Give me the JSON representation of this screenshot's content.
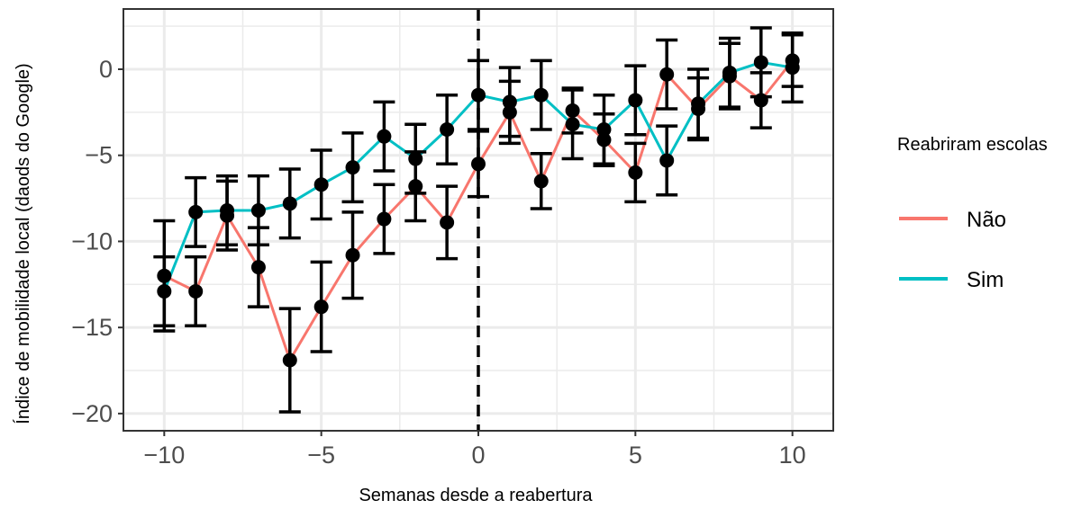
{
  "chart_data": {
    "type": "line",
    "title": "",
    "xlabel": "Semanas desde a reabertura",
    "ylabel": "Índice de mobilidade local (daods do Google)",
    "xlim": [
      -11.3,
      11.3
    ],
    "ylim": [
      -21,
      3.5
    ],
    "x_ticks": [
      -10,
      -5,
      0,
      5,
      10
    ],
    "x_tick_labels": [
      "−10",
      "−5",
      "0",
      "5",
      "10"
    ],
    "y_ticks": [
      -20,
      -15,
      -10,
      -5,
      0
    ],
    "y_tick_labels": [
      "−20",
      "−15",
      "−10",
      "−5",
      "0"
    ],
    "grid": true,
    "vline_x": 0,
    "legend": {
      "title": "Reabriram escolas",
      "position": "right"
    },
    "series": [
      {
        "name": "Não",
        "color": "#F8766D",
        "x": [
          -10,
          -9,
          -8,
          -7,
          -6,
          -5,
          -4,
          -3,
          -2,
          -1,
          0,
          1,
          2,
          3,
          4,
          5,
          6,
          7,
          8,
          9,
          10
        ],
        "y": [
          -12.0,
          -12.9,
          -8.5,
          -11.5,
          -16.9,
          -13.8,
          -10.8,
          -8.7,
          -6.8,
          -8.9,
          -5.5,
          -2.5,
          -6.5,
          -2.4,
          -4.1,
          -6.0,
          -0.3,
          -2.3,
          -0.4,
          -1.8,
          0.5
        ],
        "err": [
          3.2,
          2.0,
          2.0,
          2.3,
          3.0,
          2.6,
          2.5,
          2.0,
          2.0,
          2.1,
          1.9,
          1.8,
          1.6,
          1.3,
          1.5,
          1.7,
          2.0,
          1.8,
          1.9,
          1.6,
          1.5
        ]
      },
      {
        "name": "Sim",
        "color": "#00BFC4",
        "x": [
          -10,
          -9,
          -8,
          -7,
          -6,
          -5,
          -4,
          -3,
          -2,
          -1,
          0,
          1,
          2,
          3,
          4,
          5,
          6,
          7,
          8,
          9,
          10
        ],
        "y": [
          -12.9,
          -8.3,
          -8.2,
          -8.2,
          -7.8,
          -6.7,
          -5.7,
          -3.9,
          -5.2,
          -3.5,
          -1.5,
          -1.9,
          -1.5,
          -3.2,
          -3.5,
          -1.8,
          -5.3,
          -2.0,
          -0.2,
          0.4,
          0.1
        ]
      }
    ]
  }
}
